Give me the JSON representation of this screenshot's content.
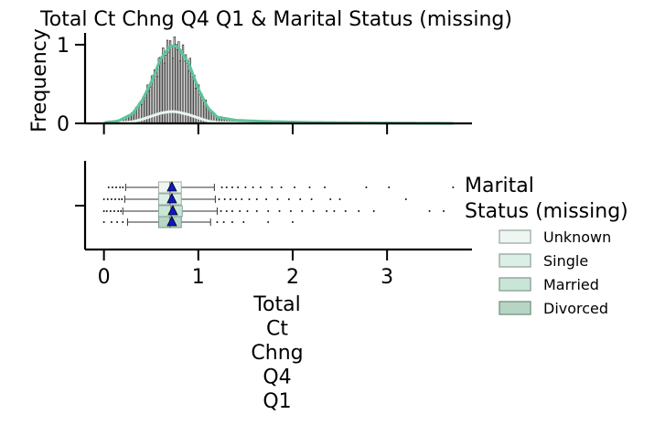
{
  "chart_data": {
    "type": "histogram+boxplot",
    "title": "Total Ct Chng Q4 Q1 & Marital Status (missing)",
    "xlabel_lines": [
      "Total",
      "Ct",
      "Chng",
      "Q4",
      "Q1"
    ],
    "hist": {
      "ylabel": "Frequency",
      "xlim": [
        -0.2,
        3.9
      ],
      "ylim": [
        0,
        1.15
      ],
      "yticks": [
        0,
        1
      ],
      "kde_x": [
        0.0,
        0.15,
        0.3,
        0.4,
        0.5,
        0.6,
        0.7,
        0.75,
        0.8,
        0.9,
        1.0,
        1.1,
        1.2,
        1.4,
        1.7,
        2.2,
        3.0,
        3.7
      ],
      "kde_combined": [
        0.01,
        0.03,
        0.12,
        0.28,
        0.52,
        0.82,
        0.98,
        0.99,
        0.95,
        0.76,
        0.44,
        0.2,
        0.08,
        0.04,
        0.025,
        0.012,
        0.004,
        0.0
      ],
      "kde_minor": [
        0.0,
        0.005,
        0.02,
        0.05,
        0.09,
        0.13,
        0.15,
        0.15,
        0.14,
        0.11,
        0.07,
        0.03,
        0.012,
        0.005,
        0.002,
        0.0,
        0.0,
        0.0
      ]
    },
    "box": {
      "xlim": [
        -0.2,
        3.9
      ],
      "xticks": [
        0,
        1,
        2,
        3
      ],
      "series": [
        {
          "name": "Unknown",
          "q1": 0.58,
          "median": 0.7,
          "q3": 0.82,
          "whisker_low": 0.23,
          "whisker_high": 1.17,
          "mean": 0.72,
          "outliers_low": [
            0.05,
            0.09,
            0.13,
            0.17,
            0.2
          ],
          "outliers_high": [
            1.25,
            1.3,
            1.36,
            1.42,
            1.5,
            1.58,
            1.66,
            1.78,
            1.88,
            2.02,
            2.18,
            2.34,
            2.78,
            3.02,
            3.7
          ]
        },
        {
          "name": "Single",
          "q1": 0.58,
          "median": 0.7,
          "q3": 0.82,
          "whisker_low": 0.22,
          "whisker_high": 1.18,
          "mean": 0.72,
          "outliers_low": [
            0.0,
            0.04,
            0.08,
            0.12,
            0.16,
            0.19
          ],
          "outliers_high": [
            1.22,
            1.28,
            1.34,
            1.4,
            1.46,
            1.54,
            1.62,
            1.72,
            1.84,
            1.96,
            2.08,
            2.2,
            2.4,
            2.5,
            3.2
          ]
        },
        {
          "name": "Married",
          "q1": 0.58,
          "median": 0.71,
          "q3": 0.83,
          "whisker_low": 0.2,
          "whisker_high": 1.2,
          "mean": 0.73,
          "outliers_low": [
            0.0,
            0.03,
            0.07,
            0.11,
            0.15,
            0.18
          ],
          "outliers_high": [
            1.24,
            1.3,
            1.36,
            1.44,
            1.52,
            1.62,
            1.74,
            1.86,
            1.98,
            2.1,
            2.22,
            2.36,
            2.44,
            2.56,
            2.7,
            2.86,
            3.45,
            3.6
          ]
        },
        {
          "name": "Divorced",
          "q1": 0.58,
          "median": 0.7,
          "q3": 0.82,
          "whisker_low": 0.25,
          "whisker_high": 1.13,
          "mean": 0.72,
          "outliers_low": [
            0.0,
            0.08,
            0.14,
            0.2
          ],
          "outliers_high": [
            1.2,
            1.27,
            1.36,
            1.48,
            1.74,
            2.0
          ]
        }
      ]
    },
    "legend": {
      "title_lines": [
        "Marital",
        "Status (missing)"
      ],
      "entries": [
        "Unknown",
        "Single",
        "Married",
        "Divorced"
      ],
      "placement": "right"
    },
    "colors": {
      "fills": [
        "#eef6f2",
        "#dcefe6",
        "#c9e5d8",
        "#b6d5c4"
      ],
      "edges": [
        "#a4b0aa",
        "#97aca2",
        "#8aa698",
        "#7a9a8a"
      ],
      "kde": "#5cc49a",
      "kde_minor": "#e6f6ee",
      "mean": "#0c18c6"
    }
  }
}
